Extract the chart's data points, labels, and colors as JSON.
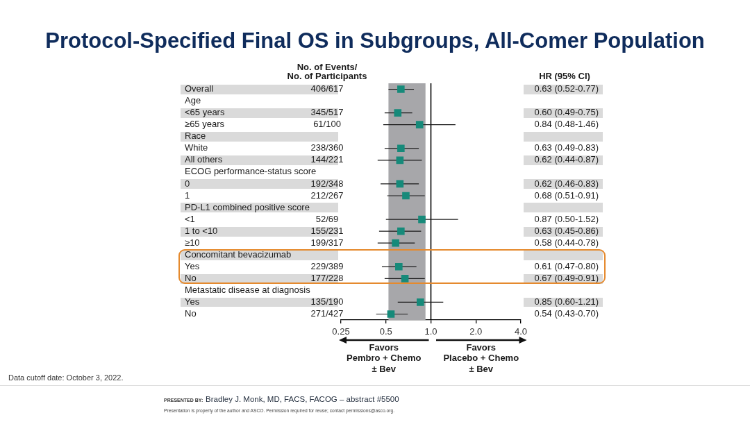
{
  "chart_data": {
    "type": "scatter",
    "orientation": "horizontal",
    "title": "Protocol-Specified Final OS in Subgroups, All-Comer Population",
    "categories": [
      "Overall",
      "Age",
      "<65 years",
      "≥65 years",
      "Race",
      "White",
      "All others",
      "ECOG performance-status score",
      "0",
      "1",
      "PD-L1 combined positive score",
      "<1",
      "1 to <10",
      "≥10",
      "Concomitant bevacizumab",
      "Yes",
      "No",
      "Metastatic disease at diagnosis",
      "Yes",
      "No"
    ],
    "y2label": "No. of Events/\nNo. of Participants",
    "y2_categories": [
      "406/617",
      null,
      "345/517",
      "61/100",
      null,
      "238/360",
      "144/221",
      null,
      "192/348",
      "212/267",
      null,
      "52/69",
      "155/231",
      "199/317",
      null,
      "229/389",
      "177/228",
      null,
      "135/190",
      "271/427"
    ],
    "color": "#168a7a",
    "marker": "square",
    "values": [
      0.63,
      null,
      0.6,
      0.84,
      null,
      0.63,
      0.62,
      null,
      0.62,
      0.68,
      null,
      0.87,
      0.63,
      0.58,
      null,
      0.61,
      0.67,
      null,
      0.85,
      0.54
    ],
    "errors": [
      [
        0.52,
        0.77
      ],
      null,
      [
        0.49,
        0.75
      ],
      [
        0.48,
        1.46
      ],
      null,
      [
        0.49,
        0.83
      ],
      [
        0.44,
        0.87
      ],
      null,
      [
        0.46,
        0.83
      ],
      [
        0.51,
        0.91
      ],
      null,
      [
        0.5,
        1.52
      ],
      [
        0.45,
        0.86
      ],
      [
        0.44,
        0.78
      ],
      null,
      [
        0.47,
        0.8
      ],
      [
        0.49,
        0.91
      ],
      null,
      [
        0.6,
        1.21
      ],
      [
        0.43,
        0.7
      ]
    ],
    "value_labels": [
      "0.63 (0.52-0.77)",
      null,
      "0.60 (0.49-0.75)",
      "0.84 (0.48-1.46)",
      null,
      "0.63 (0.49-0.83)",
      "0.62 (0.44-0.87)",
      null,
      "0.62 (0.46-0.83)",
      "0.68 (0.51-0.91)",
      null,
      "0.87 (0.50-1.52)",
      "0.63 (0.45-0.86)",
      "0.58 (0.44-0.78)",
      null,
      "0.61 (0.47-0.80)",
      "0.67 (0.49-0.91)",
      null,
      "0.85 (0.60-1.21)",
      "0.54 (0.43-0.70)"
    ],
    "xlim": [
      0.25,
      4
    ],
    "xticks": [
      0.25,
      0.5,
      {
        "value": 1,
        "label": "1.0"
      },
      {
        "value": 2,
        "label": "2.0"
      },
      {
        "value": 4,
        "label": "4.0"
      }
    ],
    "log": "x",
    "ref_lines": [
      {
        "axis": "x",
        "value": 1,
        "color": "#000000"
      }
    ],
    "bands": [
      {
        "axis": "x",
        "from": 0.52,
        "to": 0.92,
        "color": "#a7a7aa"
      }
    ],
    "annotations": [
      "HR (95% CI)",
      "Favors\nPembro + Chemo\n± Bev",
      "Favors\nPlacebo + Chemo\n± Bev",
      "Data cutoff date: October 3, 2022.",
      "PRESENTED BY:",
      "Bradley J. Monk, MD, FACS, FACOG – abstract #5500",
      "Presentation is property of the author and ASCO. Permission required for reuse; contact permissions@asco.org."
    ]
  }
}
